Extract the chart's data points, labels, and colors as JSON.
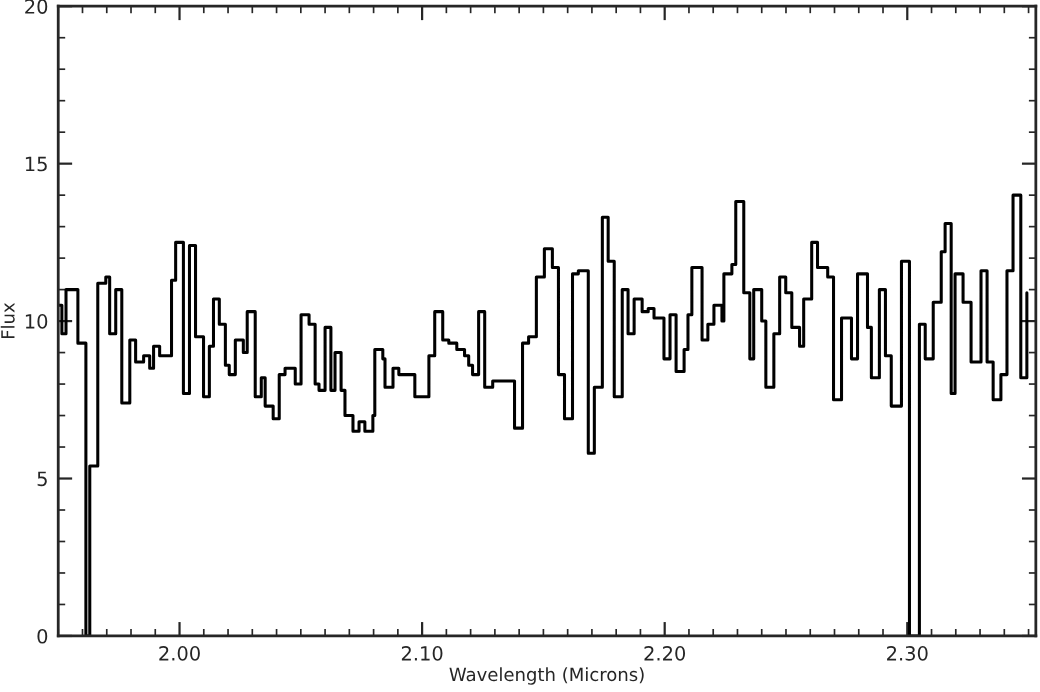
{
  "chart_data": {
    "type": "step",
    "xlabel": "Wavelength (Microns)",
    "ylabel": "Flux",
    "x": [
      1.95,
      1.9515,
      1.9532,
      1.9581,
      1.9614,
      1.963,
      1.9663,
      1.9696,
      1.9712,
      1.9737,
      1.9762,
      1.9795,
      1.9819,
      1.9852,
      1.9877,
      1.9893,
      1.9918,
      1.9967,
      1.9984,
      2.0016,
      2.0041,
      2.0066,
      2.0099,
      2.0123,
      2.014,
      2.0164,
      2.0189,
      2.0205,
      2.023,
      2.0263,
      2.0279,
      2.0312,
      2.0337,
      2.0353,
      2.0386,
      2.0411,
      2.0435,
      2.0477,
      2.0501,
      2.0534,
      2.0559,
      2.0575,
      2.06,
      2.0624,
      2.0641,
      2.0666,
      2.0682,
      2.0715,
      2.074,
      2.0764,
      2.0797,
      2.0805,
      2.0838,
      2.0847,
      2.088,
      2.0904,
      2.097,
      2.1028,
      2.1052,
      2.1085,
      2.111,
      2.1143,
      2.1175,
      2.1192,
      2.1208,
      2.1233,
      2.1258,
      2.1291,
      2.1381,
      2.1414,
      2.1439,
      2.1471,
      2.1504,
      2.1537,
      2.1562,
      2.1587,
      2.162,
      2.1644,
      2.1685,
      2.171,
      2.1743,
      2.1767,
      2.1792,
      2.1825,
      2.1849,
      2.1874,
      2.1907,
      2.1932,
      2.1956,
      2.1997,
      2.2022,
      2.2047,
      2.208,
      2.2096,
      2.2112,
      2.2154,
      2.2178,
      2.2203,
      2.2236,
      2.2244,
      2.2277,
      2.2293,
      2.2326,
      2.2351,
      2.2367,
      2.24,
      2.2417,
      2.245,
      2.2474,
      2.2499,
      2.2524,
      2.2556,
      2.2573,
      2.2606,
      2.263,
      2.2672,
      2.2696,
      2.2729,
      2.277,
      2.2795,
      2.2836,
      2.2852,
      2.2885,
      2.291,
      2.2934,
      2.2976,
      2.3009,
      2.305,
      2.3074,
      2.3107,
      2.314,
      2.3156,
      2.3181,
      2.3197,
      2.323,
      2.3263,
      2.3304,
      2.3329,
      2.3354,
      2.3386,
      2.3411,
      2.3436,
      2.3468,
      2.3493
    ],
    "values": [
      10.5,
      9.6,
      11.0,
      9.3,
      0,
      5.4,
      11.2,
      11.4,
      9.6,
      11.0,
      7.4,
      9.4,
      8.7,
      8.9,
      8.5,
      9.2,
      8.9,
      11.3,
      12.5,
      7.7,
      12.4,
      9.5,
      7.6,
      9.2,
      10.7,
      9.9,
      8.6,
      8.3,
      9.4,
      9.0,
      10.3,
      7.6,
      8.2,
      7.3,
      6.9,
      8.3,
      8.5,
      8.0,
      10.2,
      9.9,
      8.0,
      7.8,
      9.8,
      7.8,
      9.0,
      7.8,
      7.0,
      6.5,
      6.8,
      6.5,
      7.0,
      9.1,
      8.8,
      7.9,
      8.5,
      8.3,
      7.6,
      8.9,
      10.3,
      9.4,
      9.3,
      9.1,
      8.9,
      8.6,
      8.3,
      10.3,
      7.9,
      8.1,
      6.6,
      9.3,
      9.5,
      11.4,
      12.3,
      11.7,
      8.3,
      6.9,
      11.5,
      11.6,
      5.8,
      7.9,
      13.3,
      11.9,
      7.6,
      11.0,
      9.6,
      10.7,
      10.3,
      10.4,
      10.1,
      8.8,
      10.2,
      8.4,
      9.1,
      10.2,
      11.7,
      9.4,
      9.9,
      10.5,
      10.0,
      11.5,
      11.8,
      13.8,
      10.9,
      8.8,
      11.0,
      10.0,
      7.9,
      9.6,
      11.4,
      10.9,
      9.8,
      9.2,
      10.7,
      12.5,
      11.7,
      11.4,
      7.5,
      10.1,
      8.8,
      11.5,
      9.8,
      8.2,
      11.0,
      8.9,
      7.3,
      11.9,
      0,
      9.9,
      8.8,
      10.6,
      12.2,
      13.1,
      7.7,
      11.5,
      10.6,
      8.7,
      11.6,
      8.7,
      7.5,
      8.3,
      11.6,
      14.0,
      8.2,
      10.9
    ],
    "color": "#000000",
    "xlim": [
      1.95,
      2.353
    ],
    "xticks": [
      {
        "value": 2.0,
        "label": "2.00"
      },
      {
        "value": 2.1,
        "label": "2.10"
      },
      {
        "value": 2.2,
        "label": "2.20"
      },
      {
        "value": 2.3,
        "label": "2.30"
      }
    ],
    "ylim": [
      0,
      20
    ],
    "yticks": [
      0,
      5,
      10,
      15,
      20
    ],
    "grid": false
  }
}
